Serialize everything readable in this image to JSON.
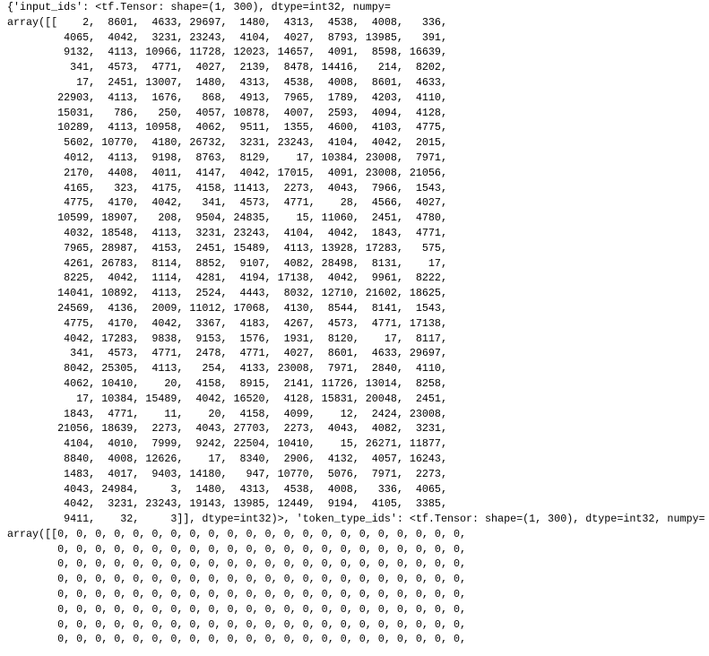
{
  "output": {
    "lines": [
      "{'input_ids': <tf.Tensor: shape=(1, 300), dtype=int32, numpy=",
      "array([[    2,  8601,  4633, 29697,  1480,  4313,  4538,  4008,   336,",
      "         4065,  4042,  3231, 23243,  4104,  4027,  8793, 13985,   391,",
      "         9132,  4113, 10966, 11728, 12023, 14657,  4091,  8598, 16639,",
      "          341,  4573,  4771,  4027,  2139,  8478, 14416,   214,  8202,",
      "           17,  2451, 13007,  1480,  4313,  4538,  4008,  8601,  4633,",
      "        22903,  4113,  1676,   868,  4913,  7965,  1789,  4203,  4110,",
      "        15031,   786,   250,  4057, 10878,  4007,  2593,  4094,  4128,",
      "        10289,  4113, 10958,  4062,  9511,  1355,  4600,  4103,  4775,",
      "         5602, 10770,  4180, 26732,  3231, 23243,  4104,  4042,  2015,",
      "         4012,  4113,  9198,  8763,  8129,    17, 10384, 23008,  7971,",
      "         2170,  4408,  4011,  4147,  4042, 17015,  4091, 23008, 21056,",
      "         4165,   323,  4175,  4158, 11413,  2273,  4043,  7966,  1543,",
      "         4775,  4170,  4042,   341,  4573,  4771,    28,  4566,  4027,",
      "        10599, 18907,   208,  9504, 24835,    15, 11060,  2451,  4780,",
      "         4032, 18548,  4113,  3231, 23243,  4104,  4042,  1843,  4771,",
      "         7965, 28987,  4153,  2451, 15489,  4113, 13928, 17283,   575,",
      "         4261, 26783,  8114,  8852,  9107,  4082, 28498,  8131,    17,",
      "         8225,  4042,  1114,  4281,  4194, 17138,  4042,  9961,  8222,",
      "        14041, 10892,  4113,  2524,  4443,  8032, 12710, 21602, 18625,",
      "        24569,  4136,  2009, 11012, 17068,  4130,  8544,  8141,  1543,",
      "         4775,  4170,  4042,  3367,  4183,  4267,  4573,  4771, 17138,",
      "         4042, 17283,  9838,  9153,  1576,  1931,  8120,    17,  8117,",
      "          341,  4573,  4771,  2478,  4771,  4027,  8601,  4633, 29697,",
      "         8042, 25305,  4113,   254,  4133, 23008,  7971,  2840,  4110,",
      "         4062, 10410,    20,  4158,  8915,  2141, 11726, 13014,  8258,",
      "           17, 10384, 15489,  4042, 16520,  4128, 15831, 20048,  2451,",
      "         1843,  4771,    11,    20,  4158,  4099,    12,  2424, 23008,",
      "        21056, 18639,  2273,  4043, 27703,  2273,  4043,  4082,  3231,",
      "         4104,  4010,  7999,  9242, 22504, 10410,    15, 26271, 11877,",
      "         8840,  4008, 12626,    17,  8340,  2906,  4132,  4057, 16243,",
      "         1483,  4017,  9403, 14180,   947, 10770,  5076,  7971,  2273,",
      "         4043, 24984,     3,  1480,  4313,  4538,  4008,   336,  4065,",
      "         4042,  3231, 23243, 19143, 13985, 12449,  9194,  4105,  3385,",
      "         9411,    32,     3]], dtype=int32)>, 'token_type_ids': <tf.Tensor: shape=(1, 300), dtype=int32, numpy=",
      "array([[0, 0, 0, 0, 0, 0, 0, 0, 0, 0, 0, 0, 0, 0, 0, 0, 0, 0, 0, 0, 0, 0,",
      "        0, 0, 0, 0, 0, 0, 0, 0, 0, 0, 0, 0, 0, 0, 0, 0, 0, 0, 0, 0, 0, 0,",
      "        0, 0, 0, 0, 0, 0, 0, 0, 0, 0, 0, 0, 0, 0, 0, 0, 0, 0, 0, 0, 0, 0,",
      "        0, 0, 0, 0, 0, 0, 0, 0, 0, 0, 0, 0, 0, 0, 0, 0, 0, 0, 0, 0, 0, 0,",
      "        0, 0, 0, 0, 0, 0, 0, 0, 0, 0, 0, 0, 0, 0, 0, 0, 0, 0, 0, 0, 0, 0,",
      "        0, 0, 0, 0, 0, 0, 0, 0, 0, 0, 0, 0, 0, 0, 0, 0, 0, 0, 0, 0, 0, 0,",
      "        0, 0, 0, 0, 0, 0, 0, 0, 0, 0, 0, 0, 0, 0, 0, 0, 0, 0, 0, 0, 0, 0,",
      "        0, 0, 0, 0, 0, 0, 0, 0, 0, 0, 0, 0, 0, 0, 0, 0, 0, 0, 0, 0, 0, 0,"
    ]
  }
}
